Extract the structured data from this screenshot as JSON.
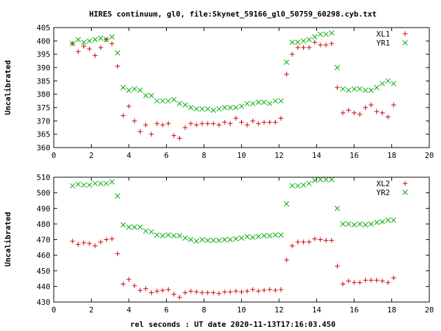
{
  "chart_data": {
    "type": "scatter",
    "title": "HIRES continuum, gl0, file:Skynet_59166_gl0_50759_60298.cyb.txt",
    "xlabel": "rel seconds : UT date 2020-11-13T17:16:03.450",
    "panels": [
      {
        "ylabel": "Uncalibrated",
        "xlim": [
          0,
          20
        ],
        "ylim": [
          360,
          405
        ],
        "xticks": [
          0,
          2,
          4,
          6,
          8,
          10,
          12,
          14,
          16,
          18,
          20
        ],
        "yticks": [
          360,
          365,
          370,
          375,
          380,
          385,
          390,
          395,
          400,
          405
        ],
        "legend_position": "top-right",
        "series": [
          {
            "name": "XL1",
            "marker": "plus",
            "color": "#cc0000",
            "x": [
              1.0,
              1.3,
              1.6,
              1.9,
              2.2,
              2.5,
              2.8,
              3.1,
              3.4,
              3.7,
              4.0,
              4.3,
              4.6,
              4.9,
              5.2,
              5.5,
              5.8,
              6.1,
              6.4,
              6.7,
              7.0,
              7.3,
              7.6,
              7.9,
              8.2,
              8.5,
              8.8,
              9.1,
              9.4,
              9.7,
              10.0,
              10.3,
              10.6,
              10.9,
              11.2,
              11.5,
              11.8,
              12.1,
              12.4,
              12.7,
              13.0,
              13.3,
              13.6,
              13.9,
              14.2,
              14.5,
              14.8,
              15.1,
              15.4,
              15.7,
              16.0,
              16.3,
              16.6,
              16.9,
              17.2,
              17.5,
              17.8,
              18.1
            ],
            "y": [
              399,
              396,
              398,
              397,
              394.5,
              397.5,
              400.5,
              399,
              390.5,
              372,
              375.5,
              370,
              366,
              368.5,
              365,
              369,
              368.5,
              369,
              364.5,
              363.5,
              367.5,
              369,
              368.5,
              369,
              369,
              369,
              368.5,
              369.5,
              369,
              371,
              369.5,
              368.5,
              370,
              369,
              369.5,
              369.5,
              369.5,
              371,
              387.5,
              395,
              397.5,
              397.5,
              397.5,
              399.5,
              398.5,
              398.5,
              399,
              382.5,
              373,
              374,
              373,
              372.5,
              375,
              376,
              373.5,
              373,
              371.5,
              376
            ]
          },
          {
            "name": "YR1",
            "marker": "cross",
            "color": "#00aa00",
            "x": [
              1.0,
              1.3,
              1.6,
              1.9,
              2.2,
              2.5,
              2.8,
              3.1,
              3.4,
              3.7,
              4.0,
              4.3,
              4.6,
              4.9,
              5.2,
              5.5,
              5.8,
              6.1,
              6.4,
              6.7,
              7.0,
              7.3,
              7.6,
              7.9,
              8.2,
              8.5,
              8.8,
              9.1,
              9.4,
              9.7,
              10.0,
              10.3,
              10.6,
              10.9,
              11.2,
              11.5,
              11.8,
              12.1,
              12.4,
              12.7,
              13.0,
              13.3,
              13.6,
              13.9,
              14.2,
              14.5,
              14.8,
              15.1,
              15.4,
              15.7,
              16.0,
              16.3,
              16.6,
              16.9,
              17.2,
              17.5,
              17.8,
              18.1
            ],
            "y": [
              399,
              400.5,
              399.5,
              400,
              400.5,
              401,
              400.5,
              401.5,
              395.5,
              382.5,
              381.5,
              382,
              381.5,
              379.5,
              379.5,
              377.5,
              377.5,
              377.5,
              378,
              376.5,
              376,
              375,
              374.5,
              374.5,
              374.5,
              374,
              374.5,
              375,
              375,
              375,
              375.5,
              376.5,
              376.5,
              377,
              377,
              376.5,
              377.5,
              377.5,
              392,
              399.5,
              399.5,
              400,
              400.5,
              401.5,
              402.5,
              402.5,
              403,
              390,
              382,
              381.5,
              382,
              382,
              381.5,
              381.5,
              382.5,
              384,
              385,
              384
            ]
          }
        ]
      },
      {
        "ylabel": "Uncalibrated",
        "xlim": [
          0,
          20
        ],
        "ylim": [
          430,
          510
        ],
        "xticks": [
          0,
          2,
          4,
          6,
          8,
          10,
          12,
          14,
          16,
          18,
          20
        ],
        "yticks": [
          430,
          440,
          450,
          460,
          470,
          480,
          490,
          500,
          510
        ],
        "legend_position": "top-right",
        "series": [
          {
            "name": "XL2",
            "marker": "plus",
            "color": "#cc0000",
            "x": [
              1.0,
              1.3,
              1.6,
              1.9,
              2.2,
              2.5,
              2.8,
              3.1,
              3.4,
              3.7,
              4.0,
              4.3,
              4.6,
              4.9,
              5.2,
              5.5,
              5.8,
              6.1,
              6.4,
              6.7,
              7.0,
              7.3,
              7.6,
              7.9,
              8.2,
              8.5,
              8.8,
              9.1,
              9.4,
              9.7,
              10.0,
              10.3,
              10.6,
              10.9,
              11.2,
              11.5,
              11.8,
              12.1,
              12.4,
              12.7,
              13.0,
              13.3,
              13.6,
              13.9,
              14.2,
              14.5,
              14.8,
              15.1,
              15.4,
              15.7,
              16.0,
              16.3,
              16.6,
              16.9,
              17.2,
              17.5,
              17.8,
              18.1
            ],
            "y": [
              469,
              467,
              468,
              467.5,
              466,
              468.5,
              470,
              470.5,
              461,
              441.5,
              444.5,
              440.5,
              437.5,
              438.5,
              436,
              437,
              437.5,
              438,
              435,
              433,
              436,
              437,
              436.5,
              436,
              436,
              436,
              435.5,
              436.5,
              436.5,
              437,
              436.5,
              437,
              438,
              437,
              437.5,
              438,
              437.5,
              438,
              457,
              466,
              468.5,
              468.5,
              468.5,
              470.5,
              470,
              469.5,
              469.5,
              453,
              441.5,
              443.5,
              442.5,
              442.5,
              444,
              444,
              444,
              443.5,
              442.5,
              445.5
            ]
          },
          {
            "name": "YR2",
            "marker": "cross",
            "color": "#00aa00",
            "x": [
              1.0,
              1.3,
              1.6,
              1.9,
              2.2,
              2.5,
              2.8,
              3.1,
              3.4,
              3.7,
              4.0,
              4.3,
              4.6,
              4.9,
              5.2,
              5.5,
              5.8,
              6.1,
              6.4,
              6.7,
              7.0,
              7.3,
              7.6,
              7.9,
              8.2,
              8.5,
              8.8,
              9.1,
              9.4,
              9.7,
              10.0,
              10.3,
              10.6,
              10.9,
              11.2,
              11.5,
              11.8,
              12.1,
              12.4,
              12.7,
              13.0,
              13.3,
              13.6,
              13.9,
              14.2,
              14.5,
              14.8,
              15.1,
              15.4,
              15.7,
              16.0,
              16.3,
              16.6,
              16.9,
              17.2,
              17.5,
              17.8,
              18.1
            ],
            "y": [
              504.5,
              505.5,
              505,
              505,
              506,
              506,
              506,
              507,
              498,
              479.5,
              478,
              478,
              478,
              475.5,
              475,
              473,
              472.5,
              473,
              472.5,
              472.5,
              471,
              470,
              469,
              470,
              469.5,
              469.5,
              469.5,
              470,
              470,
              470.5,
              471,
              472,
              471.5,
              472,
              472.5,
              472.5,
              473,
              473,
              493,
              504.5,
              504.5,
              505,
              506,
              508,
              508.5,
              508.5,
              508.5,
              490,
              480,
              480,
              479.5,
              480,
              479.5,
              480,
              481,
              481.5,
              482.5,
              482.5
            ]
          }
        ]
      }
    ]
  }
}
